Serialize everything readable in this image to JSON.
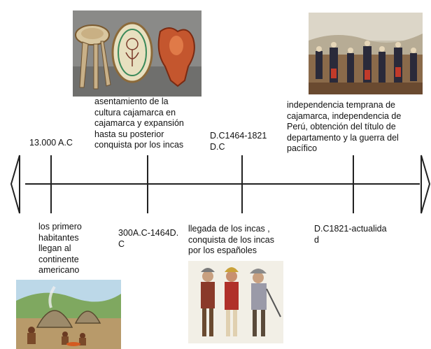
{
  "timeline": {
    "events": [
      {
        "date": "13.000 A.C",
        "description": "los primero\nhabitantes\nllegan al\ncontinente\namericano",
        "image": "prehistoric-huts-with-people-around-fire"
      },
      {
        "date": "300A.C-1464D.\nC",
        "description": "asentamiento de la\ncultura cajamarca en\ncajamarca y expansión\nhasta su posterior\nconquista por los incas",
        "image": "three-cajamarca-ceramic-artifacts"
      },
      {
        "date": "D.C1464-1821\nD.C",
        "description": "llegada de los incas ,\nconquista de los incas\npor los españoles",
        "image": "spanish-conquistadors-painting"
      },
      {
        "date": "D.C1821-actualida\nd",
        "description": "independencia  temprana de\ncajamarca, independencia de\nPerú, obtención del título de\ndepartamento y la guerra del\npacífico",
        "image": "war-of-the-pacific-battle-painting"
      }
    ]
  },
  "colors": {
    "line": "#222222",
    "text": "#111111"
  }
}
